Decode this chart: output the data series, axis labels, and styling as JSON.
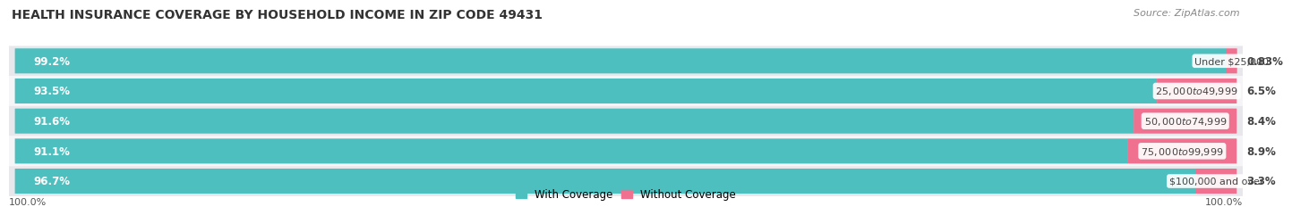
{
  "title": "HEALTH INSURANCE COVERAGE BY HOUSEHOLD INCOME IN ZIP CODE 49431",
  "source": "Source: ZipAtlas.com",
  "categories": [
    "Under $25,000",
    "$25,000 to $49,999",
    "$50,000 to $74,999",
    "$75,000 to $99,999",
    "$100,000 and over"
  ],
  "with_coverage": [
    99.2,
    93.5,
    91.6,
    91.1,
    96.7
  ],
  "without_coverage": [
    0.83,
    6.5,
    8.4,
    8.9,
    3.3
  ],
  "with_color": "#4dbfbf",
  "without_color": "#f07090",
  "row_bg_even": "#e8e8ec",
  "row_bg_odd": "#f5f5f8",
  "background_color": "#ffffff",
  "title_fontsize": 10,
  "label_fontsize": 8.5,
  "tick_fontsize": 8,
  "legend_fontsize": 8.5,
  "source_fontsize": 8,
  "with_label_color": "#ffffff",
  "without_label_color": "#444444",
  "category_label_color": "#444444",
  "axis_label_left": "100.0%",
  "axis_label_right": "100.0%"
}
